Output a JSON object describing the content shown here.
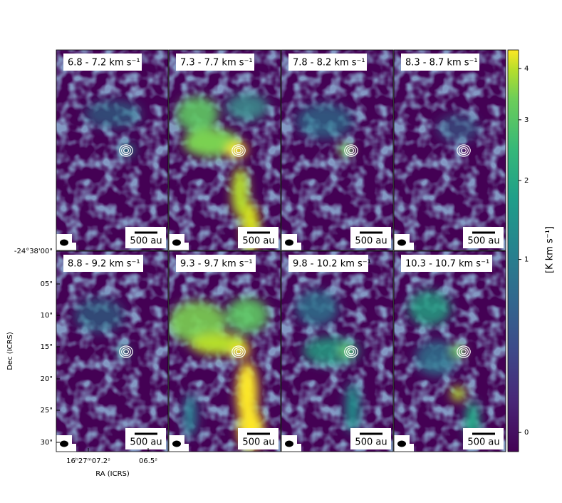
{
  "figure": {
    "panels": [
      {
        "label": "6.8 - 7.2 km s⁻¹",
        "scale_bar": "500 au"
      },
      {
        "label": "7.3 - 7.7 km s⁻¹",
        "scale_bar": "500 au"
      },
      {
        "label": "7.8 - 8.2 km s⁻¹",
        "scale_bar": "500 au"
      },
      {
        "label": "8.3 - 8.7 km s⁻¹",
        "scale_bar": "500 au"
      },
      {
        "label": "8.8 - 9.2 km s⁻¹",
        "scale_bar": "500 au"
      },
      {
        "label": "9.3 - 9.7 km s⁻¹",
        "scale_bar": "500 au"
      },
      {
        "label": "9.8 - 10.2 km s⁻¹",
        "scale_bar": "500 au"
      },
      {
        "label": "10.3 - 10.7 km s⁻¹",
        "scale_bar": "500 au"
      }
    ],
    "y_axis": {
      "label": "Dec (ICRS)",
      "ticks": [
        "-24°38'00\"",
        "05\"",
        "10\"",
        "15\"",
        "20\"",
        "25\"",
        "30\""
      ]
    },
    "x_axis": {
      "label": "RA (ICRS)",
      "ticks": [
        "16ʰ27ᵐ07.2ˢ",
        "06.5ˢ"
      ]
    },
    "colorbar": {
      "label": "[K km s⁻¹]",
      "lim": [
        -0.01,
        4.4
      ],
      "stretch": "sqrt",
      "ticks": [
        0,
        1,
        2,
        3,
        4
      ]
    }
  }
}
